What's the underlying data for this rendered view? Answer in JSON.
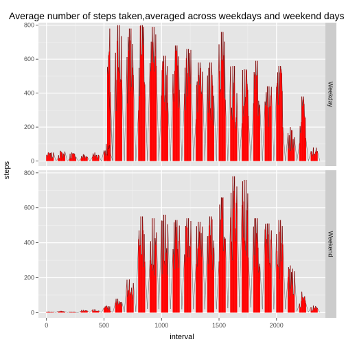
{
  "chart_data": {
    "type": "bar",
    "title": "Average number of steps taken,averaged across weekdays and weekend days",
    "xlabel": "interval",
    "ylabel": "steps",
    "xlim": [
      -70,
      2425
    ],
    "ylim": [
      -30,
      815
    ],
    "x_ticks": [
      0,
      500,
      1000,
      1500,
      2000
    ],
    "y_ticks": [
      0,
      200,
      400,
      600,
      800
    ],
    "grid": true,
    "bar_color": "#ff0000",
    "line_color": "#000000",
    "panel_background": "#e5e5e5",
    "strip_background": "#cccccc",
    "facets": [
      {
        "name": "Weekday",
        "segments": [
          {
            "x0": 0,
            "x1": 60,
            "max": 50,
            "avg": 20
          },
          {
            "x0": 100,
            "x1": 160,
            "max": 60,
            "avg": 25
          },
          {
            "x0": 200,
            "x1": 255,
            "max": 50,
            "avg": 18
          },
          {
            "x0": 300,
            "x1": 355,
            "max": 40,
            "avg": 15
          },
          {
            "x0": 400,
            "x1": 455,
            "max": 50,
            "avg": 18
          },
          {
            "x0": 500,
            "x1": 555,
            "max": 100,
            "avg": 40
          },
          {
            "x0": 530,
            "x1": 555,
            "max": 780,
            "avg": 600
          },
          {
            "x0": 600,
            "x1": 655,
            "max": 800,
            "avg": 650
          },
          {
            "x0": 700,
            "x1": 755,
            "max": 780,
            "avg": 640
          },
          {
            "x0": 800,
            "x1": 855,
            "max": 800,
            "avg": 660
          },
          {
            "x0": 900,
            "x1": 955,
            "max": 790,
            "avg": 650
          },
          {
            "x0": 1000,
            "x1": 1055,
            "max": 620,
            "avg": 480
          },
          {
            "x0": 1100,
            "x1": 1155,
            "max": 680,
            "avg": 520
          },
          {
            "x0": 1200,
            "x1": 1255,
            "max": 660,
            "avg": 500
          },
          {
            "x0": 1300,
            "x1": 1355,
            "max": 580,
            "avg": 440
          },
          {
            "x0": 1400,
            "x1": 1455,
            "max": 580,
            "avg": 440
          },
          {
            "x0": 1500,
            "x1": 1555,
            "max": 760,
            "avg": 620
          },
          {
            "x0": 1600,
            "x1": 1655,
            "max": 560,
            "avg": 420
          },
          {
            "x0": 1700,
            "x1": 1755,
            "max": 540,
            "avg": 410
          },
          {
            "x0": 1800,
            "x1": 1855,
            "max": 590,
            "avg": 440
          },
          {
            "x0": 1900,
            "x1": 1955,
            "max": 440,
            "avg": 320
          },
          {
            "x0": 2000,
            "x1": 2055,
            "max": 560,
            "avg": 380
          },
          {
            "x0": 2100,
            "x1": 2155,
            "max": 200,
            "avg": 120
          },
          {
            "x0": 2200,
            "x1": 2255,
            "max": 380,
            "avg": 170
          },
          {
            "x0": 2300,
            "x1": 2355,
            "max": 80,
            "avg": 40
          }
        ]
      },
      {
        "name": "Weekend",
        "segments": [
          {
            "x0": 0,
            "x1": 60,
            "max": 5,
            "avg": 2
          },
          {
            "x0": 100,
            "x1": 160,
            "max": 10,
            "avg": 4
          },
          {
            "x0": 200,
            "x1": 255,
            "max": 5,
            "avg": 2
          },
          {
            "x0": 300,
            "x1": 355,
            "max": 15,
            "avg": 5
          },
          {
            "x0": 400,
            "x1": 455,
            "max": 20,
            "avg": 6
          },
          {
            "x0": 500,
            "x1": 555,
            "max": 40,
            "avg": 15
          },
          {
            "x0": 600,
            "x1": 655,
            "max": 80,
            "avg": 40
          },
          {
            "x0": 700,
            "x1": 755,
            "max": 190,
            "avg": 100
          },
          {
            "x0": 800,
            "x1": 855,
            "max": 550,
            "avg": 420
          },
          {
            "x0": 900,
            "x1": 955,
            "max": 540,
            "avg": 410
          },
          {
            "x0": 1000,
            "x1": 1055,
            "max": 560,
            "avg": 420
          },
          {
            "x0": 1100,
            "x1": 1155,
            "max": 530,
            "avg": 380
          },
          {
            "x0": 1200,
            "x1": 1255,
            "max": 540,
            "avg": 400
          },
          {
            "x0": 1300,
            "x1": 1355,
            "max": 520,
            "avg": 380
          },
          {
            "x0": 1400,
            "x1": 1455,
            "max": 550,
            "avg": 400
          },
          {
            "x0": 1500,
            "x1": 1555,
            "max": 660,
            "avg": 500
          },
          {
            "x0": 1600,
            "x1": 1655,
            "max": 780,
            "avg": 620
          },
          {
            "x0": 1700,
            "x1": 1755,
            "max": 760,
            "avg": 600
          },
          {
            "x0": 1800,
            "x1": 1855,
            "max": 540,
            "avg": 400
          },
          {
            "x0": 1900,
            "x1": 1955,
            "max": 510,
            "avg": 380
          },
          {
            "x0": 2000,
            "x1": 2055,
            "max": 530,
            "avg": 400
          },
          {
            "x0": 2100,
            "x1": 2155,
            "max": 270,
            "avg": 150
          },
          {
            "x0": 2200,
            "x1": 2255,
            "max": 120,
            "avg": 60
          },
          {
            "x0": 2300,
            "x1": 2355,
            "max": 40,
            "avg": 15
          }
        ]
      }
    ]
  }
}
